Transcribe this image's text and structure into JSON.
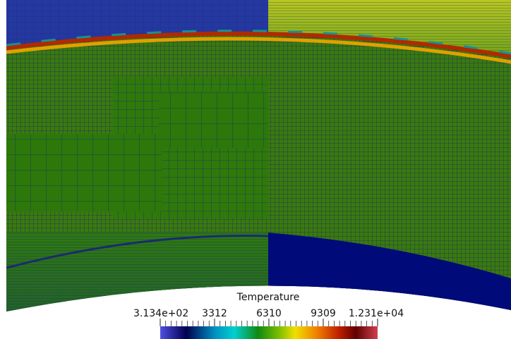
{
  "colorbar": {
    "title": "Temperature",
    "range": [
      313.4,
      12310
    ],
    "ticks": [
      {
        "value": 313.4,
        "label": "3.134e+02"
      },
      3312,
      6310,
      9309,
      {
        "value": 12310,
        "label": "1.231e+04"
      }
    ]
  }
}
